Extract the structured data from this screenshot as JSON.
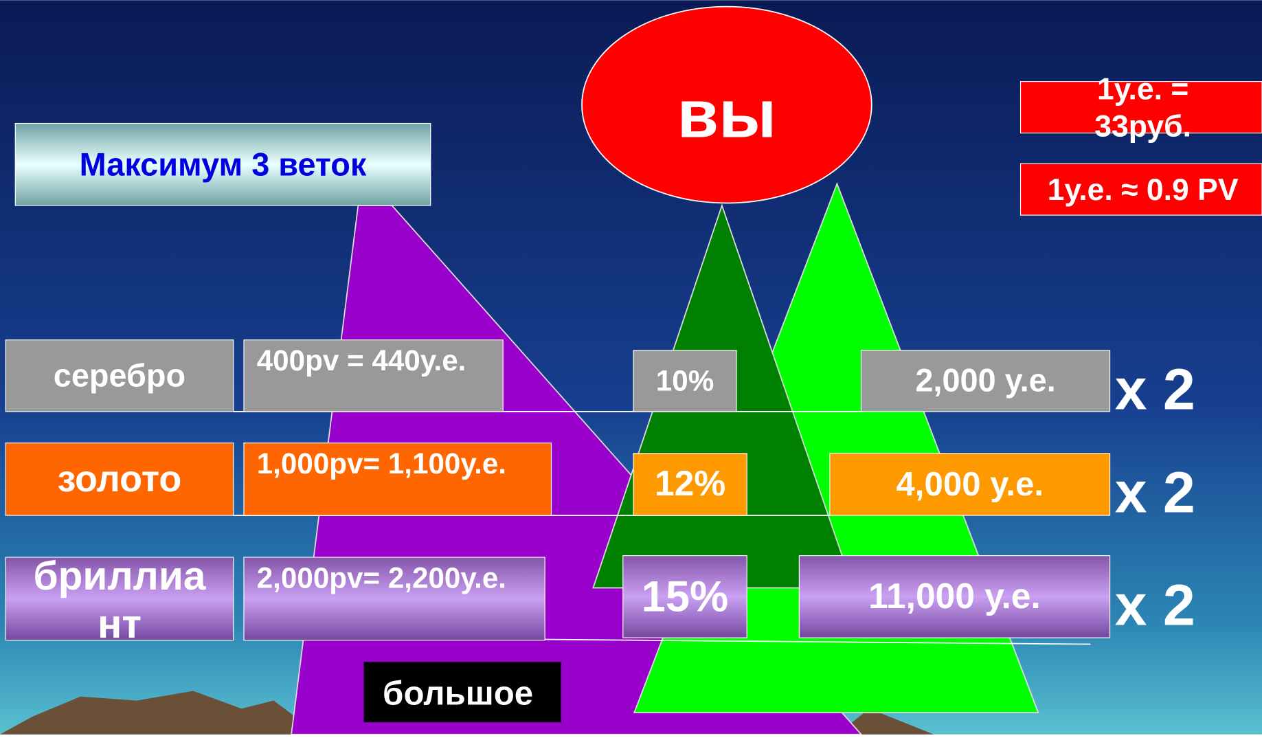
{
  "title": "вы",
  "note": "Максимум 3 веток",
  "rates": [
    "1у.е. = 33руб.",
    "1у.е. ≈ 0.9 PV"
  ],
  "rows": [
    {
      "rank": "серебро",
      "pv": "400pv  = 440у.е.",
      "percent": "10%",
      "amount": "2,000 у.е.",
      "multiplier": "x 2"
    },
    {
      "rank": "золото",
      "pv": "1,000pv= 1,100у.е.",
      "percent": "12%",
      "amount": "4,000 у.е.",
      "multiplier": "x 2"
    },
    {
      "rank": "бриллиант",
      "pv": "2,000pv= 2,200у.е.",
      "percent": "15%",
      "amount": "11,000 у.е.",
      "multiplier": "x 2"
    }
  ],
  "footer": "большое"
}
